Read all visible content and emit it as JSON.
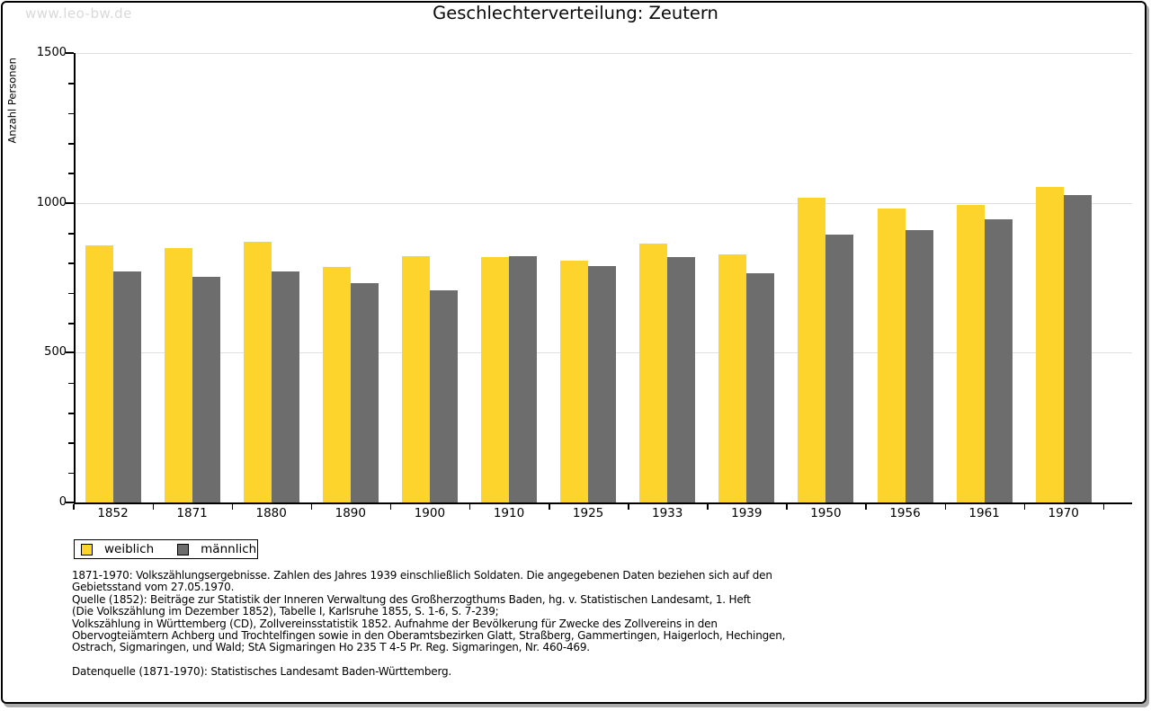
{
  "watermark": "www.leo-bw.de",
  "title": "Geschlechterverteilung: Zeutern",
  "colors": {
    "weiblich": "#FDD42C",
    "maennlich": "#6D6D6D",
    "grid": "#E0E0E0",
    "axis": "#000000",
    "watermark": "#D9D9D9",
    "frame_shadow": "#ABABAB"
  },
  "chart_data": {
    "type": "bar",
    "title": "Geschlechterverteilung: Zeutern",
    "categories": [
      "1852",
      "1871",
      "1880",
      "1890",
      "1900",
      "1910",
      "1925",
      "1933",
      "1939",
      "1950",
      "1956",
      "1961",
      "1970"
    ],
    "series": [
      {
        "name": "weiblich",
        "color": "#FDD42C",
        "values": [
          857,
          849,
          869,
          785,
          821,
          820,
          806,
          863,
          828,
          1018,
          980,
          993,
          1053
        ]
      },
      {
        "name": "männlich",
        "color": "#6D6D6D",
        "values": [
          770,
          754,
          770,
          731,
          708,
          822,
          789,
          818,
          766,
          893,
          909,
          945,
          1026
        ]
      }
    ],
    "xlabel": "",
    "ylabel": "Anzahl Personen",
    "ylim": [
      0,
      1500
    ],
    "yticks_major": [
      0,
      500,
      1000,
      1500
    ],
    "ytick_minor_step": 100,
    "grid": "horizontal-major",
    "legend_position": "bottom-left"
  },
  "footnotes": [
    "1871-1970: Volkszählungsergebnisse. Zahlen des Jahres 1939 einschließlich Soldaten. Die angegebenen Daten beziehen sich auf den",
    "Gebietsstand vom 27.05.1970.",
    "Quelle (1852): Beiträge zur Statistik der Inneren Verwaltung des Großherzogthums Baden, hg. v. Statistischen Landesamt, 1. Heft",
    "(Die Volkszählung im Dezember 1852), Tabelle I, Karlsruhe 1855, S. 1-6, S. 7-239;",
    "Volkszählung in Württemberg (CD), Zollvereinsstatistik 1852. Aufnahme der Bevölkerung für Zwecke des Zollvereins in den",
    "Obervogteiämtern Achberg und Trochtelfingen sowie in den Oberamtsbezirken Glatt, Straßberg, Gammertingen, Haigerloch, Hechingen,",
    "Ostrach, Sigmaringen, und Wald; StA Sigmaringen Ho 235 T 4-5 Pr. Reg. Sigmaringen, Nr. 460-469."
  ],
  "datasource": "Datenquelle (1871-1970): Statistisches Landesamt Baden-Württemberg."
}
